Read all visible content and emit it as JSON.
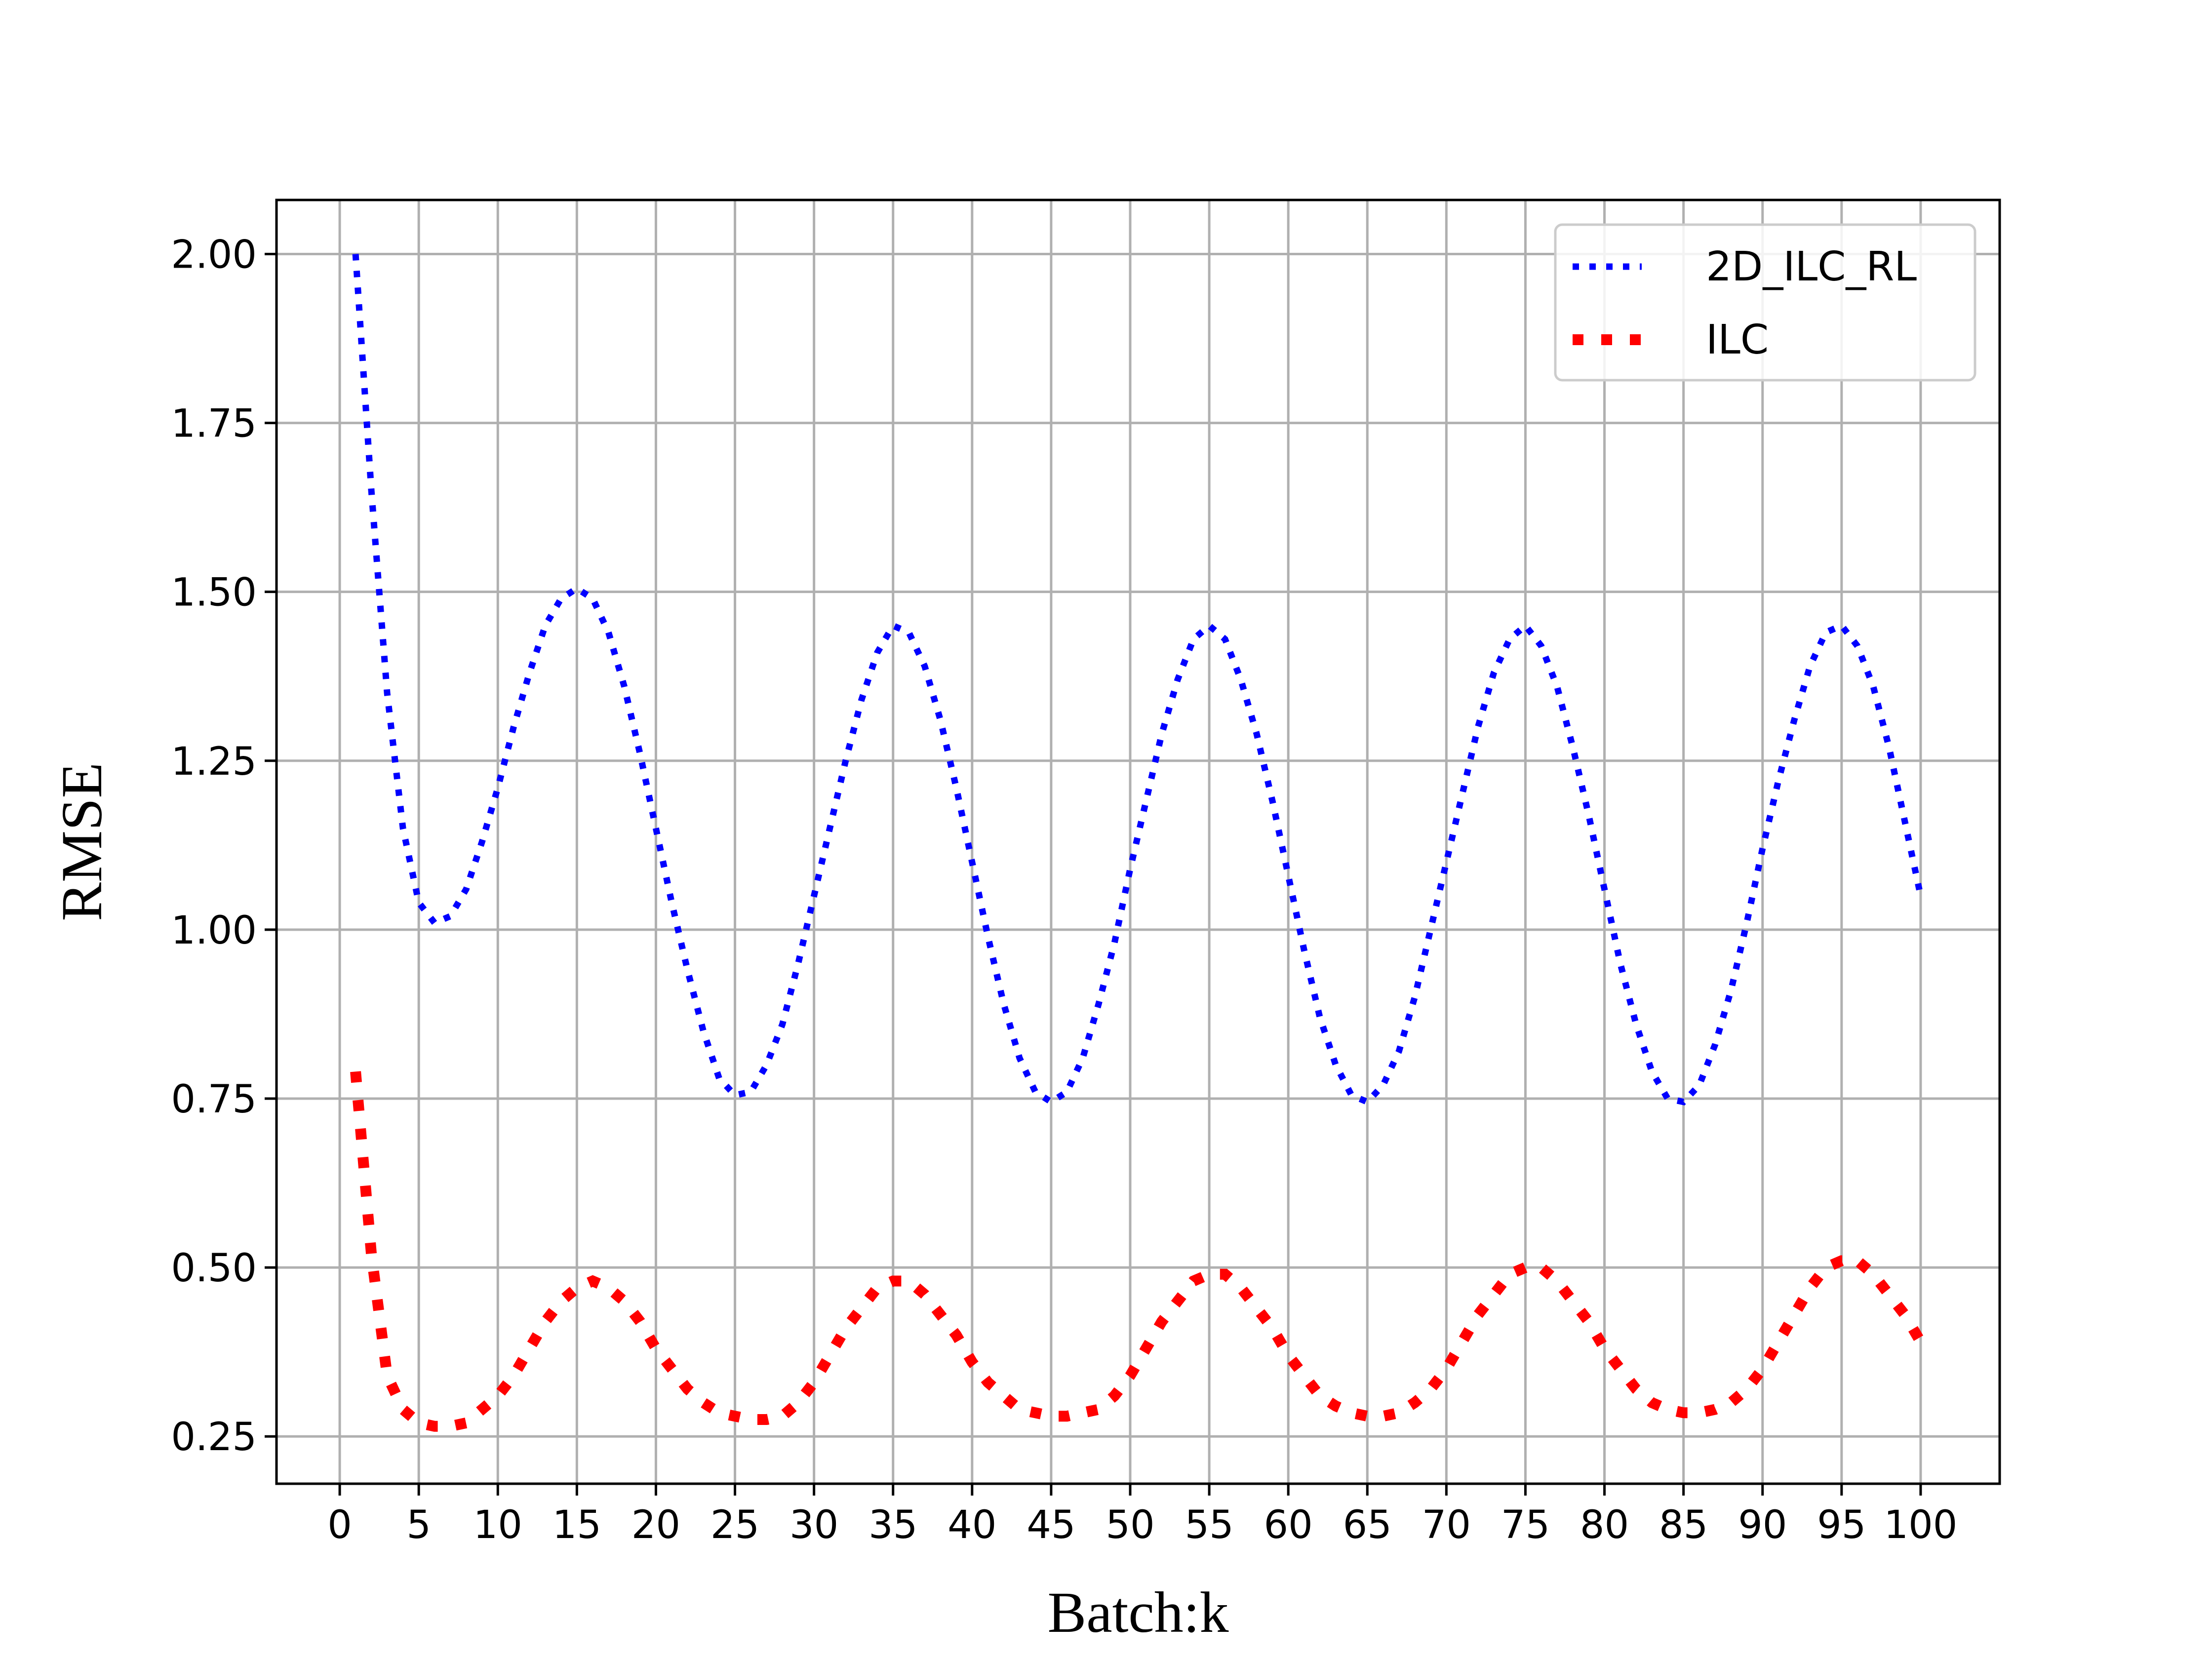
{
  "chart_data": {
    "type": "line",
    "title": "",
    "xlabel": "Batch:k",
    "ylabel": "RMSE",
    "xlim": [
      -4,
      105
    ],
    "ylim": [
      0.18,
      2.08
    ],
    "x_ticks": [
      0,
      5,
      10,
      15,
      20,
      25,
      30,
      35,
      40,
      45,
      50,
      55,
      60,
      65,
      70,
      75,
      80,
      85,
      90,
      95,
      100
    ],
    "y_ticks": [
      0.25,
      0.5,
      0.75,
      1.0,
      1.25,
      1.5,
      1.75,
      2.0
    ],
    "y_tick_labels": [
      "0.25",
      "0.50",
      "0.75",
      "1.00",
      "1.25",
      "1.50",
      "1.75",
      "2.00"
    ],
    "grid": true,
    "legend_position": "top-right",
    "series": [
      {
        "name": "2D_ILC_RL",
        "color": "#0000ff",
        "style": "dotted",
        "points": [
          [
            1,
            2.0
          ],
          [
            2,
            1.65
          ],
          [
            3,
            1.35
          ],
          [
            4,
            1.15
          ],
          [
            5,
            1.04
          ],
          [
            6,
            1.01
          ],
          [
            7,
            1.02
          ],
          [
            8,
            1.06
          ],
          [
            9,
            1.13
          ],
          [
            10,
            1.21
          ],
          [
            11,
            1.3
          ],
          [
            12,
            1.38
          ],
          [
            13,
            1.45
          ],
          [
            14,
            1.49
          ],
          [
            15,
            1.505
          ],
          [
            16,
            1.49
          ],
          [
            17,
            1.44
          ],
          [
            18,
            1.36
          ],
          [
            19,
            1.26
          ],
          [
            20,
            1.15
          ],
          [
            21,
            1.04
          ],
          [
            22,
            0.94
          ],
          [
            23,
            0.85
          ],
          [
            24,
            0.78
          ],
          [
            25,
            0.755
          ],
          [
            26,
            0.76
          ],
          [
            27,
            0.8
          ],
          [
            28,
            0.86
          ],
          [
            29,
            0.95
          ],
          [
            30,
            1.05
          ],
          [
            31,
            1.15
          ],
          [
            32,
            1.25
          ],
          [
            33,
            1.34
          ],
          [
            34,
            1.41
          ],
          [
            35,
            1.45
          ],
          [
            36,
            1.44
          ],
          [
            37,
            1.39
          ],
          [
            38,
            1.31
          ],
          [
            39,
            1.21
          ],
          [
            40,
            1.1
          ],
          [
            41,
            0.99
          ],
          [
            42,
            0.89
          ],
          [
            43,
            0.81
          ],
          [
            44,
            0.76
          ],
          [
            45,
            0.745
          ],
          [
            46,
            0.76
          ],
          [
            47,
            0.81
          ],
          [
            48,
            0.89
          ],
          [
            49,
            0.98
          ],
          [
            50,
            1.09
          ],
          [
            51,
            1.19
          ],
          [
            52,
            1.29
          ],
          [
            53,
            1.37
          ],
          [
            54,
            1.43
          ],
          [
            55,
            1.45
          ],
          [
            56,
            1.43
          ],
          [
            57,
            1.37
          ],
          [
            58,
            1.29
          ],
          [
            59,
            1.19
          ],
          [
            60,
            1.08
          ],
          [
            61,
            0.97
          ],
          [
            62,
            0.87
          ],
          [
            63,
            0.8
          ],
          [
            64,
            0.755
          ],
          [
            65,
            0.745
          ],
          [
            66,
            0.77
          ],
          [
            67,
            0.82
          ],
          [
            68,
            0.9
          ],
          [
            69,
            1.0
          ],
          [
            70,
            1.1
          ],
          [
            71,
            1.2
          ],
          [
            72,
            1.3
          ],
          [
            73,
            1.38
          ],
          [
            74,
            1.43
          ],
          [
            75,
            1.45
          ],
          [
            76,
            1.42
          ],
          [
            77,
            1.36
          ],
          [
            78,
            1.27
          ],
          [
            79,
            1.17
          ],
          [
            80,
            1.06
          ],
          [
            81,
            0.95
          ],
          [
            82,
            0.86
          ],
          [
            83,
            0.79
          ],
          [
            84,
            0.75
          ],
          [
            85,
            0.745
          ],
          [
            86,
            0.77
          ],
          [
            87,
            0.83
          ],
          [
            88,
            0.91
          ],
          [
            89,
            1.01
          ],
          [
            90,
            1.12
          ],
          [
            91,
            1.22
          ],
          [
            92,
            1.31
          ],
          [
            93,
            1.39
          ],
          [
            94,
            1.44
          ],
          [
            95,
            1.45
          ],
          [
            96,
            1.42
          ],
          [
            97,
            1.36
          ],
          [
            98,
            1.27
          ],
          [
            99,
            1.16
          ],
          [
            100,
            1.05
          ]
        ]
      },
      {
        "name": "ILC",
        "color": "#ff0000",
        "style": "dotted",
        "points": [
          [
            1,
            0.79
          ],
          [
            2,
            0.52
          ],
          [
            3,
            0.34
          ],
          [
            4,
            0.29
          ],
          [
            5,
            0.27
          ],
          [
            6,
            0.265
          ],
          [
            7,
            0.265
          ],
          [
            8,
            0.27
          ],
          [
            9,
            0.29
          ],
          [
            10,
            0.31
          ],
          [
            11,
            0.34
          ],
          [
            12,
            0.38
          ],
          [
            13,
            0.42
          ],
          [
            14,
            0.45
          ],
          [
            15,
            0.47
          ],
          [
            16,
            0.48
          ],
          [
            17,
            0.47
          ],
          [
            18,
            0.45
          ],
          [
            19,
            0.42
          ],
          [
            20,
            0.38
          ],
          [
            21,
            0.35
          ],
          [
            22,
            0.32
          ],
          [
            23,
            0.3
          ],
          [
            24,
            0.285
          ],
          [
            25,
            0.28
          ],
          [
            26,
            0.275
          ],
          [
            27,
            0.275
          ],
          [
            28,
            0.28
          ],
          [
            29,
            0.3
          ],
          [
            30,
            0.33
          ],
          [
            31,
            0.37
          ],
          [
            32,
            0.41
          ],
          [
            33,
            0.44
          ],
          [
            34,
            0.47
          ],
          [
            35,
            0.48
          ],
          [
            36,
            0.48
          ],
          [
            37,
            0.46
          ],
          [
            38,
            0.43
          ],
          [
            39,
            0.4
          ],
          [
            40,
            0.36
          ],
          [
            41,
            0.33
          ],
          [
            42,
            0.31
          ],
          [
            43,
            0.29
          ],
          [
            44,
            0.285
          ],
          [
            45,
            0.28
          ],
          [
            46,
            0.28
          ],
          [
            47,
            0.285
          ],
          [
            48,
            0.29
          ],
          [
            49,
            0.31
          ],
          [
            50,
            0.34
          ],
          [
            51,
            0.38
          ],
          [
            52,
            0.42
          ],
          [
            53,
            0.45
          ],
          [
            54,
            0.48
          ],
          [
            55,
            0.49
          ],
          [
            56,
            0.49
          ],
          [
            57,
            0.47
          ],
          [
            58,
            0.44
          ],
          [
            59,
            0.41
          ],
          [
            60,
            0.37
          ],
          [
            61,
            0.34
          ],
          [
            62,
            0.31
          ],
          [
            63,
            0.295
          ],
          [
            64,
            0.285
          ],
          [
            65,
            0.28
          ],
          [
            66,
            0.28
          ],
          [
            67,
            0.285
          ],
          [
            68,
            0.3
          ],
          [
            69,
            0.32
          ],
          [
            70,
            0.35
          ],
          [
            71,
            0.39
          ],
          [
            72,
            0.43
          ],
          [
            73,
            0.46
          ],
          [
            74,
            0.49
          ],
          [
            75,
            0.5
          ],
          [
            76,
            0.5
          ],
          [
            77,
            0.48
          ],
          [
            78,
            0.45
          ],
          [
            79,
            0.42
          ],
          [
            80,
            0.38
          ],
          [
            81,
            0.35
          ],
          [
            82,
            0.32
          ],
          [
            83,
            0.3
          ],
          [
            84,
            0.29
          ],
          [
            85,
            0.285
          ],
          [
            86,
            0.285
          ],
          [
            87,
            0.29
          ],
          [
            88,
            0.3
          ],
          [
            89,
            0.32
          ],
          [
            90,
            0.35
          ],
          [
            91,
            0.39
          ],
          [
            92,
            0.43
          ],
          [
            93,
            0.47
          ],
          [
            94,
            0.5
          ],
          [
            95,
            0.51
          ],
          [
            96,
            0.51
          ],
          [
            97,
            0.49
          ],
          [
            98,
            0.46
          ],
          [
            99,
            0.43
          ],
          [
            100,
            0.39
          ]
        ]
      }
    ]
  }
}
